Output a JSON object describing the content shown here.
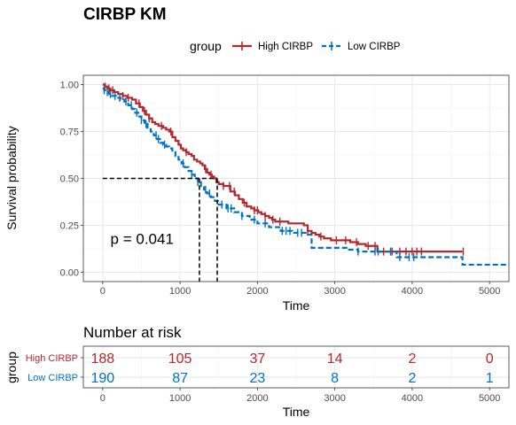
{
  "chart_data": [
    {
      "type": "line",
      "title": "CIRBP KM",
      "xlabel": "Time",
      "ylabel": "Survival probability",
      "xlim": [
        -250,
        5250
      ],
      "ylim": [
        -0.05,
        1.05
      ],
      "xticks": [
        0,
        1000,
        2000,
        3000,
        4000,
        5000
      ],
      "yticks": [
        0.0,
        0.25,
        0.5,
        0.75,
        1.0
      ],
      "ytick_labels": [
        "0.00",
        "0.25",
        "0.50",
        "0.75",
        "1.00"
      ],
      "grid": true,
      "legend": {
        "title": "group",
        "position": "top"
      },
      "annotation": {
        "text": "p = 0.041",
        "x": 100,
        "y": 0.18
      },
      "median_lines": {
        "y": 0.5,
        "x": [
          1250,
          1480
        ]
      },
      "series": [
        {
          "name": "High CIRBP",
          "color": "#B2282E",
          "dash": "solid",
          "x": [
            0,
            30,
            60,
            100,
            150,
            200,
            260,
            320,
            380,
            430,
            480,
            520,
            560,
            600,
            640,
            680,
            720,
            780,
            820,
            860,
            900,
            940,
            980,
            1010,
            1040,
            1080,
            1110,
            1150,
            1180,
            1220,
            1260,
            1290,
            1320,
            1350,
            1380,
            1410,
            1440,
            1470,
            1500,
            1560,
            1650,
            1710,
            1760,
            1810,
            1860,
            1920,
            1960,
            2010,
            2050,
            2100,
            2150,
            2190,
            2230,
            2300,
            2400,
            2600,
            2650,
            2700,
            2750,
            2800,
            2860,
            2900,
            2950,
            3000,
            3200,
            3300,
            3400,
            3550,
            4650
          ],
          "y": [
            1.0,
            0.99,
            0.98,
            0.97,
            0.96,
            0.95,
            0.94,
            0.93,
            0.92,
            0.9,
            0.88,
            0.86,
            0.84,
            0.82,
            0.8,
            0.79,
            0.78,
            0.77,
            0.76,
            0.75,
            0.72,
            0.7,
            0.68,
            0.66,
            0.65,
            0.64,
            0.63,
            0.62,
            0.6,
            0.59,
            0.58,
            0.57,
            0.55,
            0.53,
            0.52,
            0.51,
            0.5,
            0.48,
            0.47,
            0.46,
            0.43,
            0.41,
            0.39,
            0.37,
            0.35,
            0.34,
            0.33,
            0.32,
            0.31,
            0.3,
            0.29,
            0.28,
            0.27,
            0.27,
            0.26,
            0.25,
            0.22,
            0.21,
            0.2,
            0.19,
            0.18,
            0.18,
            0.17,
            0.17,
            0.16,
            0.15,
            0.14,
            0.11,
            0.11
          ],
          "censor_x": [
            30,
            80,
            130,
            260,
            330,
            470,
            540,
            600,
            760,
            880,
            1080,
            1330,
            1400,
            1560,
            1640,
            1700,
            1830,
            1960,
            2000,
            2100,
            2200,
            2290,
            2650,
            2820,
            3020,
            3140,
            3280,
            3430,
            3520,
            3630,
            3740,
            3840,
            3920,
            4000,
            4060,
            4120,
            4660
          ]
        },
        {
          "name": "Low CIRBP",
          "color": "#0072C6",
          "dash": "dashed",
          "x": [
            0,
            20,
            50,
            80,
            120,
            170,
            230,
            280,
            330,
            380,
            420,
            460,
            500,
            540,
            580,
            620,
            660,
            700,
            740,
            780,
            820,
            860,
            900,
            940,
            980,
            1020,
            1060,
            1110,
            1150,
            1190,
            1230,
            1270,
            1310,
            1350,
            1400,
            1450,
            1500,
            1600,
            1700,
            1800,
            1900,
            2000,
            2150,
            2300,
            2450,
            2650,
            2700,
            2950,
            3150,
            3300,
            3800,
            4650,
            4700,
            5250
          ],
          "y": [
            0.98,
            0.97,
            0.96,
            0.95,
            0.94,
            0.93,
            0.92,
            0.91,
            0.89,
            0.87,
            0.85,
            0.83,
            0.81,
            0.79,
            0.77,
            0.75,
            0.73,
            0.71,
            0.69,
            0.68,
            0.67,
            0.66,
            0.64,
            0.62,
            0.6,
            0.58,
            0.56,
            0.54,
            0.52,
            0.5,
            0.48,
            0.46,
            0.44,
            0.42,
            0.4,
            0.38,
            0.36,
            0.34,
            0.32,
            0.3,
            0.28,
            0.26,
            0.24,
            0.22,
            0.21,
            0.2,
            0.13,
            0.13,
            0.12,
            0.11,
            0.08,
            0.04,
            0.04,
            0.04
          ],
          "censor_x": [
            20,
            60,
            100,
            160,
            220,
            300,
            370,
            440,
            500,
            560,
            690,
            720,
            800,
            1040,
            1150,
            1230,
            1330,
            1380,
            1540,
            1620,
            1660,
            1800,
            1960,
            2100,
            2320,
            2370,
            2420,
            2520,
            2570,
            3300,
            3520,
            3560,
            3720,
            3840,
            3960,
            4020
          ]
        }
      ]
    },
    {
      "type": "table",
      "title": "Number at risk",
      "xlabel": "Time",
      "ylabel": "group",
      "xlim": [
        -250,
        5250
      ],
      "xticks": [
        0,
        1000,
        2000,
        3000,
        4000,
        5000
      ],
      "rows": [
        {
          "name": "High CIRBP",
          "color": "#B2282E",
          "values": [
            188,
            105,
            37,
            14,
            2,
            0
          ]
        },
        {
          "name": "Low CIRBP",
          "color": "#0072C6",
          "values": [
            190,
            87,
            23,
            8,
            2,
            1
          ]
        }
      ]
    }
  ]
}
